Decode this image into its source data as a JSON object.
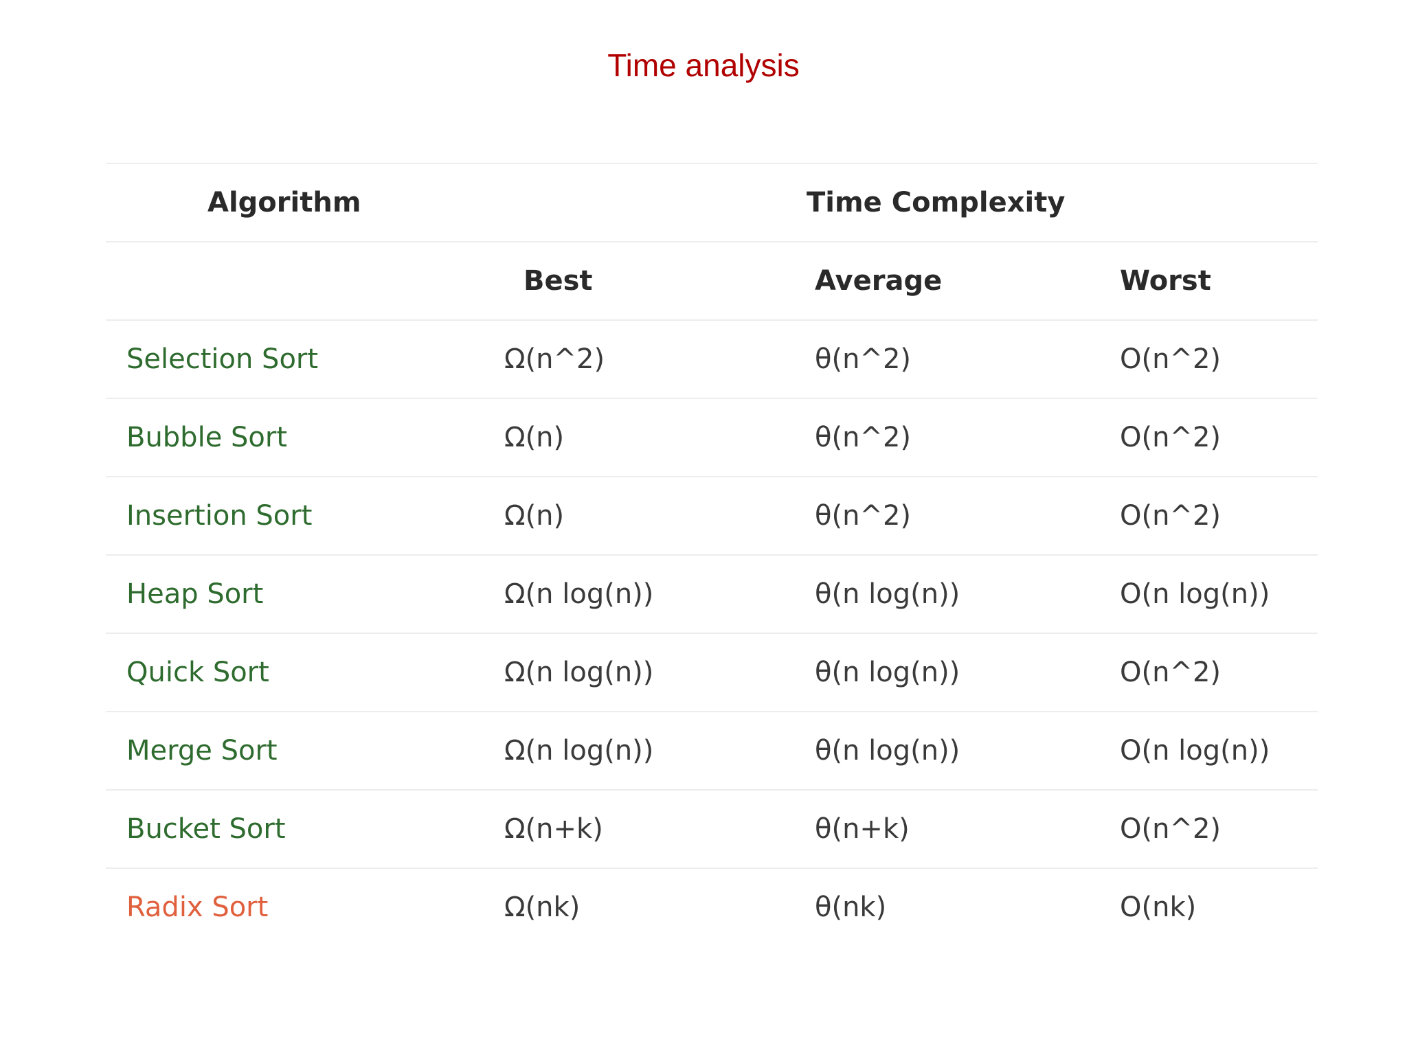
{
  "title": "Time analysis",
  "header": {
    "algorithm": "Algorithm",
    "time_complexity": "Time Complexity",
    "best": "Best",
    "average": "Average",
    "worst": "Worst"
  },
  "colors": {
    "title": "#b00000",
    "algorithm_name": "#2e6b2e",
    "highlight_name": "#e0603e"
  },
  "rows": [
    {
      "name": "Selection Sort",
      "best": "Ω(n^2)",
      "average": "θ(n^2)",
      "worst": "O(n^2)"
    },
    {
      "name": "Bubble Sort",
      "best": "Ω(n)",
      "average": "θ(n^2)",
      "worst": "O(n^2)"
    },
    {
      "name": "Insertion Sort",
      "best": "Ω(n)",
      "average": "θ(n^2)",
      "worst": "O(n^2)"
    },
    {
      "name": "Heap Sort",
      "best": "Ω(n log(n))",
      "average": "θ(n log(n))",
      "worst": "O(n log(n))"
    },
    {
      "name": "Quick Sort",
      "best": "Ω(n log(n))",
      "average": "θ(n log(n))",
      "worst": "O(n^2)"
    },
    {
      "name": "Merge Sort",
      "best": "Ω(n log(n))",
      "average": "θ(n log(n))",
      "worst": "O(n log(n))"
    },
    {
      "name": "Bucket Sort",
      "best": "Ω(n+k)",
      "average": "θ(n+k)",
      "worst": "O(n^2)"
    },
    {
      "name": "Radix Sort",
      "best": "Ω(nk)",
      "average": "θ(nk)",
      "worst": "O(nk)"
    }
  ]
}
